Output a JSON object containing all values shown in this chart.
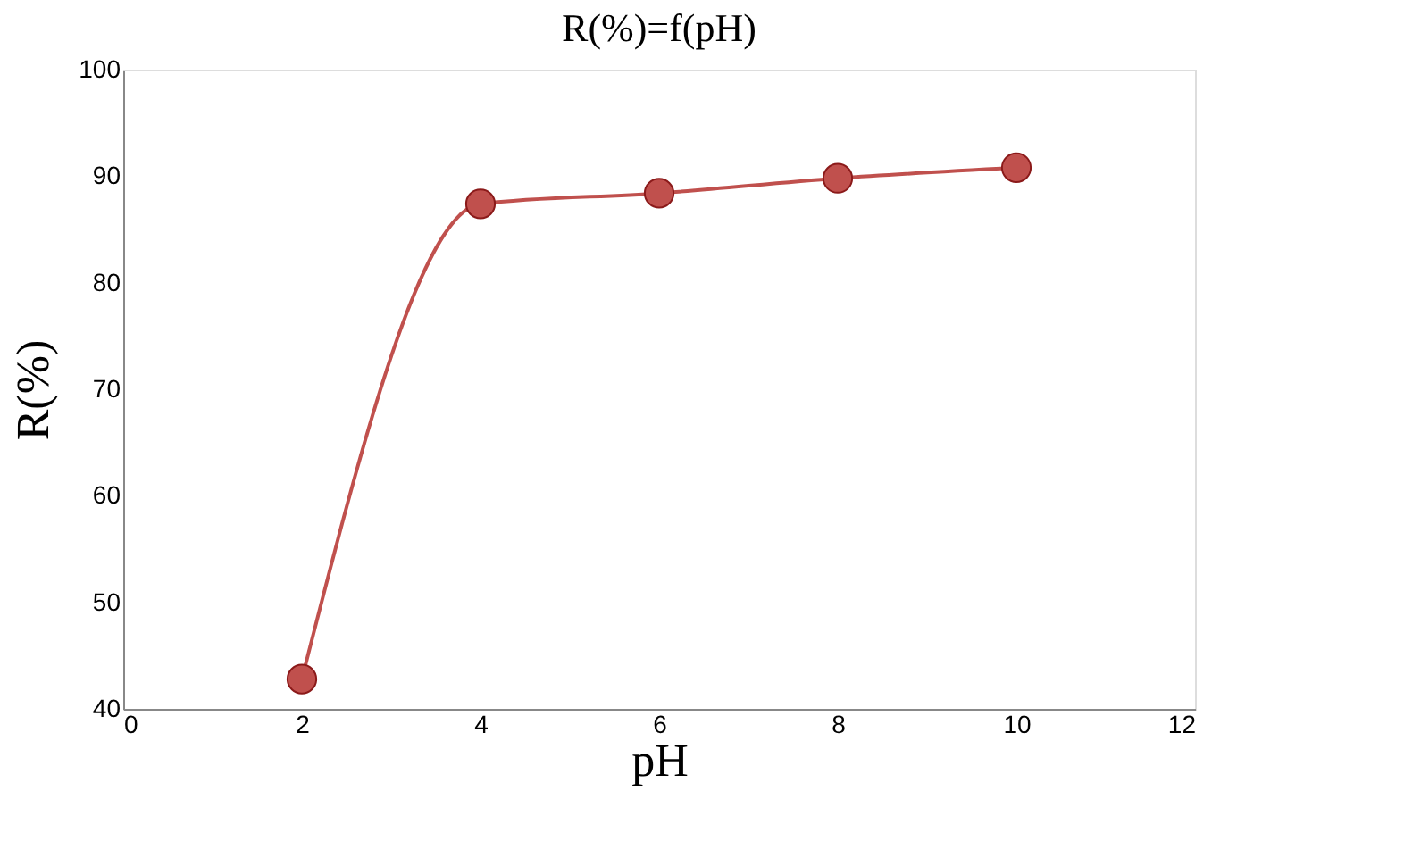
{
  "chart_data": {
    "type": "line",
    "title": "R(%)=f(pH)",
    "xlabel": "pH",
    "ylabel": "R(%)",
    "x": [
      2,
      4,
      6,
      8,
      10
    ],
    "series": [
      {
        "color": "#c0504d",
        "values": [
          42.8,
          87.4,
          88.4,
          89.8,
          90.8
        ]
      }
    ],
    "xlim": [
      0,
      12
    ],
    "xticks": [
      0,
      2,
      4,
      6,
      8,
      10,
      12
    ],
    "ylim": [
      40,
      100
    ],
    "yticks": [
      40,
      50,
      60,
      70,
      80,
      90,
      100
    ],
    "grid": false,
    "legend": false,
    "marker": "circle",
    "line_style": "solid"
  }
}
